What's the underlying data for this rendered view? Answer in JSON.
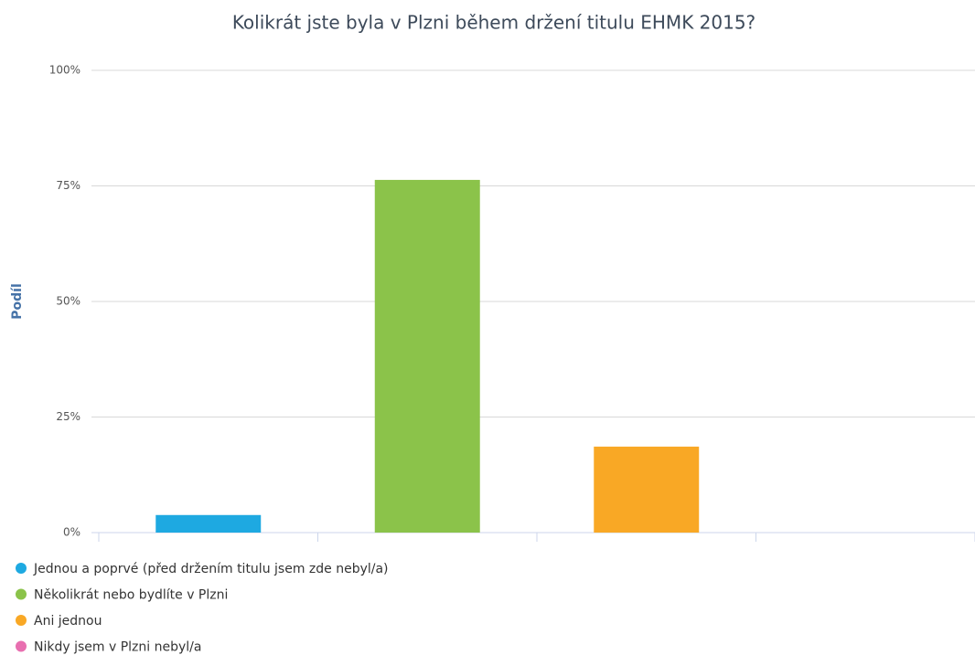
{
  "chart_data": {
    "type": "bar",
    "title": "Kolikrát jste byla v Plzni během držení titulu EHMK 2015?",
    "y_label": "Podíl",
    "categories": [
      null,
      null,
      null,
      null
    ],
    "series": [
      {
        "name": "Jednou a poprvé (před držením titulu jsem zde nebyl/a)",
        "color": "#1ea9e1",
        "values": [
          3.8,
          null,
          null,
          null
        ]
      },
      {
        "name": "Několikrát nebo bydlíte v Plzni",
        "color": "#8bc34a",
        "values": [
          null,
          76.3,
          null,
          null
        ]
      },
      {
        "name": "Ani jednou",
        "color": "#f9a825",
        "values": [
          null,
          null,
          18.6,
          null
        ]
      },
      {
        "name": "Nikdy jsem v Plzni nebyl/a",
        "color": "#e86fb0",
        "values": [
          null,
          null,
          null,
          0
        ]
      }
    ],
    "ylim": [
      0,
      100
    ],
    "yticks": [
      {
        "value": 0,
        "label": "0%"
      },
      {
        "value": 25,
        "label": "25%"
      },
      {
        "value": 50,
        "label": "50%"
      },
      {
        "value": 75,
        "label": "75%"
      },
      {
        "value": 100,
        "label": "100%"
      }
    ],
    "grid": true,
    "legend": "bottom-left"
  }
}
